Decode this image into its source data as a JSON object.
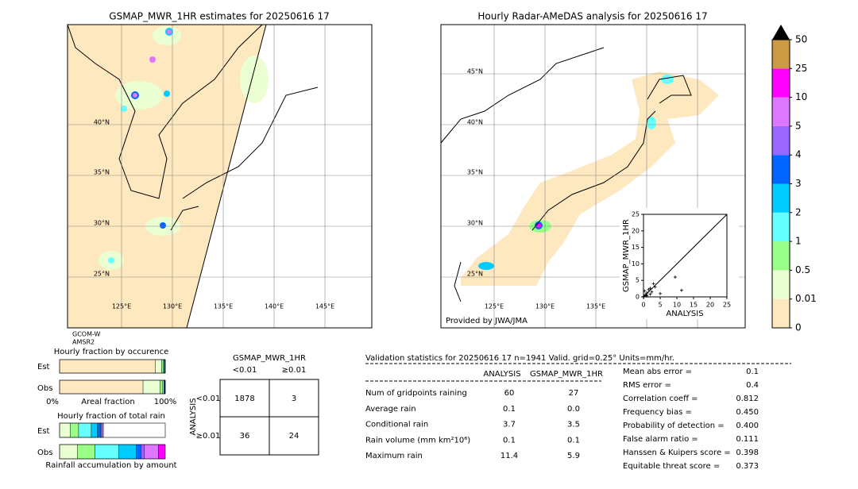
{
  "left_map": {
    "title": "GSMAP_MWR_1HR estimates for 20250616 17",
    "lat_labels": [
      "40°N",
      "35°N",
      "30°N",
      "25°N"
    ],
    "lon_labels": [
      "125°E",
      "130°E",
      "135°E",
      "140°E",
      "145°E"
    ],
    "satellite": [
      "GCOM-W",
      "AMSR2"
    ]
  },
  "right_map": {
    "title": "Hourly Radar-AMeDAS analysis for 20250616 17",
    "lat_labels": [
      "45°N",
      "40°N",
      "35°N",
      "30°N",
      "25°N"
    ],
    "lon_labels": [
      "125°E",
      "130°E",
      "135°E"
    ],
    "credit": "Provided by JWA/JMA"
  },
  "colorbar": {
    "ticks": [
      0,
      0.01,
      0.5,
      1,
      2,
      3,
      4,
      5,
      10,
      25,
      50
    ],
    "colors": [
      "#fee8c0",
      "#eaffd2",
      "#99ff88",
      "#66ffff",
      "#00ccff",
      "#0066ff",
      "#9966ff",
      "#dd77ff",
      "#ff00ff",
      "#cc9944"
    ],
    "extend_color": "#000000"
  },
  "scatter": {
    "xlabel": "ANALYSIS",
    "ylabel": "GSMAP_MWR_1HR",
    "xlim": [
      0,
      25
    ],
    "ylim": [
      0,
      25
    ],
    "xticks": [
      0,
      5,
      10,
      15,
      20,
      25
    ],
    "yticks": [
      0,
      5,
      10,
      15,
      20,
      25
    ],
    "x": [
      0.1,
      0.5,
      1,
      1.5,
      2,
      2.5,
      3,
      3.5,
      1,
      0.3,
      5,
      9.5,
      11.4,
      0.8,
      2
    ],
    "y": [
      0.1,
      0.6,
      1.2,
      2.2,
      0.8,
      1.5,
      4,
      3,
      0.3,
      1.8,
      1,
      6,
      2,
      0.5,
      2.6
    ]
  },
  "occurrence": {
    "title": "Hourly fraction by occurence",
    "rows": [
      "Est",
      "Obs"
    ],
    "axis_labels": [
      "0%",
      "Areal fraction",
      "100%"
    ],
    "segments": [
      [
        0.905,
        0.06,
        0.015,
        0.01,
        0.005,
        0.003,
        0.002,
        0,
        0,
        0
      ],
      [
        0.79,
        0.16,
        0.025,
        0.012,
        0.006,
        0.004,
        0.002,
        0.001,
        0,
        0
      ]
    ]
  },
  "total_rain": {
    "title": "Hourly fraction of total rain",
    "rows": [
      "Est",
      "Obs"
    ],
    "xlabel": "Rainfall accumulation by amount",
    "segments": [
      [
        0,
        0.1,
        0.08,
        0.12,
        0.06,
        0.03,
        0.015,
        0.01,
        0,
        0
      ],
      [
        0,
        0.17,
        0.165,
        0.225,
        0.165,
        0.045,
        0.03,
        0.135,
        0.06,
        0
      ]
    ]
  },
  "contingency": {
    "title": "GSMAP_MWR_1HR",
    "columns": [
      "<0.01",
      "≥0.01"
    ],
    "row_axis": "ANALYSIS",
    "rows": [
      "<0.01",
      "≥0.01"
    ],
    "cells": [
      [
        1878,
        3
      ],
      [
        36,
        24
      ]
    ]
  },
  "validation": {
    "header": "Validation statistics for 20250616 17  n=1941 Valid. grid=0.25° Units=mm/hr.",
    "columns": [
      "ANALYSIS",
      "GSMAP_MWR_1HR"
    ],
    "rows": [
      {
        "name": "Num of gridpoints raining",
        "values": [
          "60",
          "27"
        ]
      },
      {
        "name": "Average rain",
        "values": [
          "0.1",
          "0.0"
        ]
      },
      {
        "name": "Conditional rain",
        "values": [
          "3.7",
          "3.5"
        ]
      },
      {
        "name": "Rain volume (mm km²10⁶)",
        "values": [
          "0.1",
          "0.1"
        ]
      },
      {
        "name": "Maximum rain",
        "values": [
          "11.4",
          "5.9"
        ]
      }
    ],
    "scores": [
      {
        "label": "Mean abs error =",
        "value": "0.1"
      },
      {
        "label": "RMS error =",
        "value": "0.4"
      },
      {
        "label": "Correlation coeff =",
        "value": "0.812"
      },
      {
        "label": "Frequency bias =",
        "value": "0.450"
      },
      {
        "label": "Probability of detection =",
        "value": "0.400"
      },
      {
        "label": "False alarm ratio =",
        "value": "0.111"
      },
      {
        "label": "Hanssen & Kuipers score =",
        "value": "0.398"
      },
      {
        "label": "Equitable threat score =",
        "value": "0.373"
      }
    ]
  }
}
